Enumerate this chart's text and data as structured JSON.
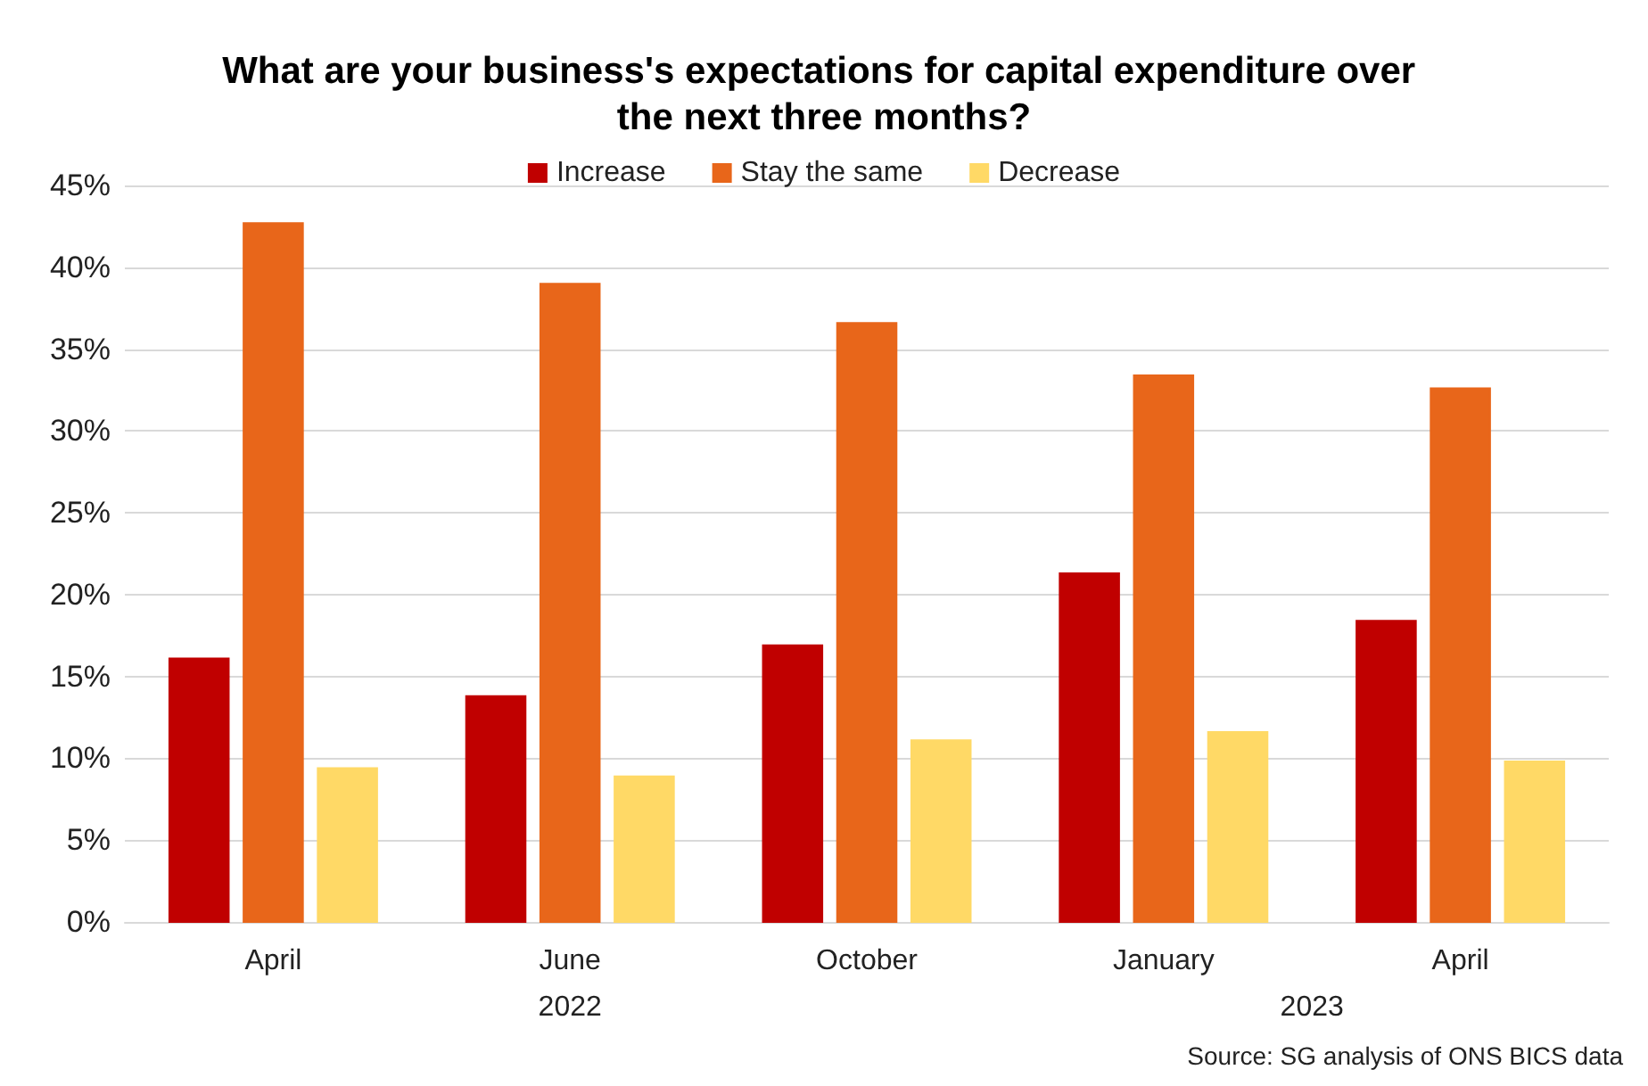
{
  "chart_data": {
    "type": "bar",
    "title": "What are your business's expectations for capital expenditure over the next three months?",
    "categories": [
      "April",
      "June",
      "October",
      "January",
      "April"
    ],
    "series": [
      {
        "name": "Increase",
        "color": "#c00000",
        "values": [
          16.1,
          13.8,
          16.9,
          21.3,
          18.4
        ]
      },
      {
        "name": "Stay the same",
        "color": "#e8661a",
        "values": [
          42.7,
          39.0,
          36.6,
          33.4,
          32.6
        ]
      },
      {
        "name": "Decrease",
        "color": "#ffd966",
        "values": [
          9.4,
          8.9,
          11.1,
          11.6,
          9.8
        ]
      }
    ],
    "ylim": [
      0,
      45
    ],
    "yticks": [
      {
        "value": 0,
        "label": "0%"
      },
      {
        "value": 5,
        "label": "5%"
      },
      {
        "value": 10,
        "label": "10%"
      },
      {
        "value": 15,
        "label": "15%"
      },
      {
        "value": 20,
        "label": "20%"
      },
      {
        "value": 25,
        "label": "25%"
      },
      {
        "value": 30,
        "label": "30%"
      },
      {
        "value": 35,
        "label": "35%"
      },
      {
        "value": 40,
        "label": "40%"
      },
      {
        "value": 45,
        "label": "45%"
      }
    ],
    "grid": "y",
    "legend": "top",
    "annotations": [
      "2022",
      "2023",
      "Source: SG analysis of ONS BICS data"
    ]
  }
}
